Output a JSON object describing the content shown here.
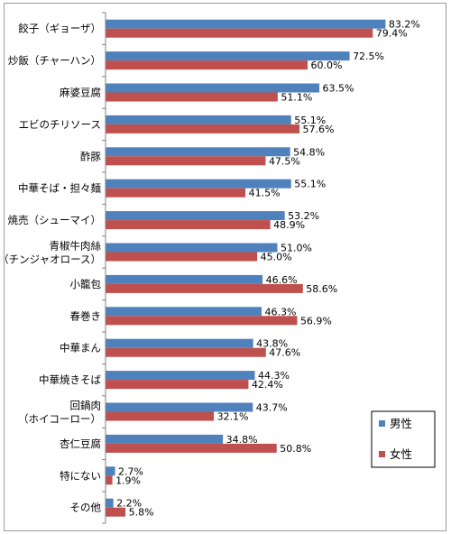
{
  "chart_data": {
    "type": "bar",
    "orientation": "horizontal",
    "categories": [
      [
        "餃子（ギョーザ）"
      ],
      [
        "炒飯（チャーハン）"
      ],
      [
        "麻婆豆腐"
      ],
      [
        "エビのチリソース"
      ],
      [
        "酢豚"
      ],
      [
        "中華そば・担々麺"
      ],
      [
        "焼売（シューマイ）"
      ],
      [
        "青椒牛肉絲",
        "（チンジャオロース）"
      ],
      [
        "小籠包"
      ],
      [
        "春巻き"
      ],
      [
        "中華まん"
      ],
      [
        "中華焼きそば"
      ],
      [
        "回鍋肉",
        "（ホイコーロー）"
      ],
      [
        "杏仁豆腐"
      ],
      [
        "特にない"
      ],
      [
        "その他"
      ]
    ],
    "series": [
      {
        "name": "男性",
        "color": "#4f81bd",
        "values": [
          83.2,
          72.5,
          63.5,
          55.1,
          54.8,
          55.1,
          53.2,
          51.0,
          46.6,
          46.3,
          43.8,
          44.3,
          43.7,
          34.8,
          2.7,
          2.2
        ],
        "labels": [
          "83.2%",
          "72.5%",
          "63.5%",
          "55.1%",
          "54.8%",
          "55.1%",
          "53.2%",
          "51.0%",
          "46.6%",
          "46.3%",
          "43.8%",
          "44.3%",
          "43.7%",
          "34.8%",
          "2.7%",
          "2.2%"
        ]
      },
      {
        "name": "女性",
        "color": "#c0504d",
        "values": [
          79.4,
          60.0,
          51.1,
          57.6,
          47.5,
          41.5,
          48.9,
          45.0,
          58.6,
          56.9,
          47.6,
          42.4,
          32.1,
          50.8,
          1.9,
          5.8
        ],
        "labels": [
          "79.4%",
          "60.0%",
          "51.1%",
          "57.6%",
          "47.5%",
          "41.5%",
          "48.9%",
          "45.0%",
          "58.6%",
          "56.9%",
          "47.6%",
          "42.4%",
          "32.1%",
          "50.8%",
          "1.9%",
          "5.8%"
        ]
      }
    ],
    "xlim": [
      0,
      100
    ],
    "grid": false,
    "legend_position": "bottom-right"
  }
}
